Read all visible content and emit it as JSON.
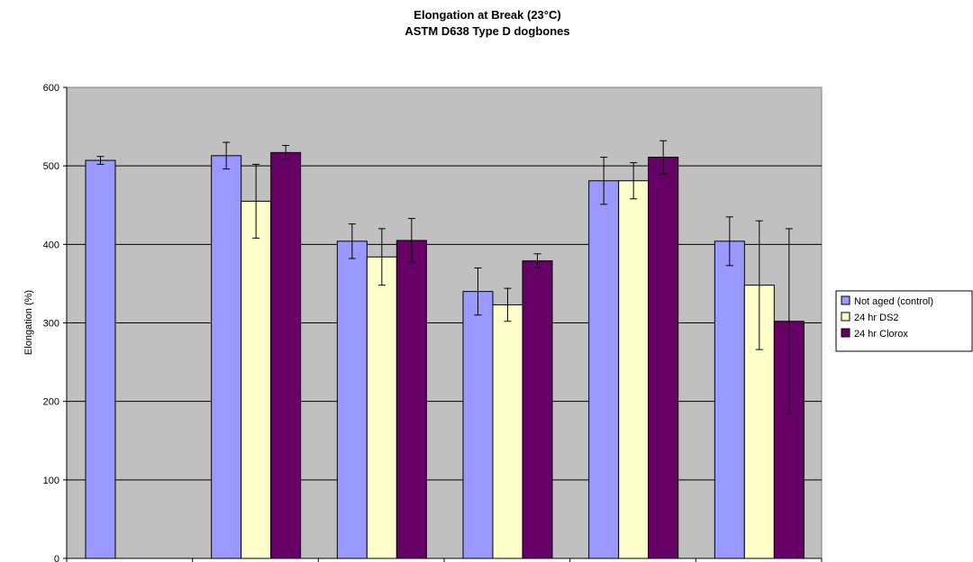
{
  "chart_data": {
    "type": "bar",
    "title": "Elongation at Break (23°C)",
    "subtitle": "ASTM D638 Type D dogbones",
    "xlabel": "",
    "ylabel": "Elongation (%)",
    "ylim": [
      0,
      600
    ],
    "yticks": [
      0,
      100,
      200,
      300,
      400,
      500,
      600
    ],
    "grid": true,
    "legend_position": "right",
    "plot_background": "#c0c0c0",
    "categories": [
      "",
      "",
      "",
      "",
      "",
      ""
    ],
    "series": [
      {
        "name": "Not aged (control)",
        "color": "#9999ff",
        "values": [
          507,
          513,
          404,
          340,
          481,
          404
        ],
        "error": [
          5,
          17,
          22,
          30,
          30,
          31
        ]
      },
      {
        "name": "24 hr DS2",
        "color": "#ffffcc",
        "values": [
          null,
          455,
          384,
          323,
          481,
          348
        ],
        "error": [
          null,
          47,
          36,
          21,
          23,
          82
        ]
      },
      {
        "name": "24 hr Clorox",
        "color": "#660066",
        "values": [
          null,
          517,
          405,
          379,
          511,
          302
        ],
        "error": [
          null,
          9,
          28,
          9,
          21,
          118
        ]
      }
    ]
  }
}
